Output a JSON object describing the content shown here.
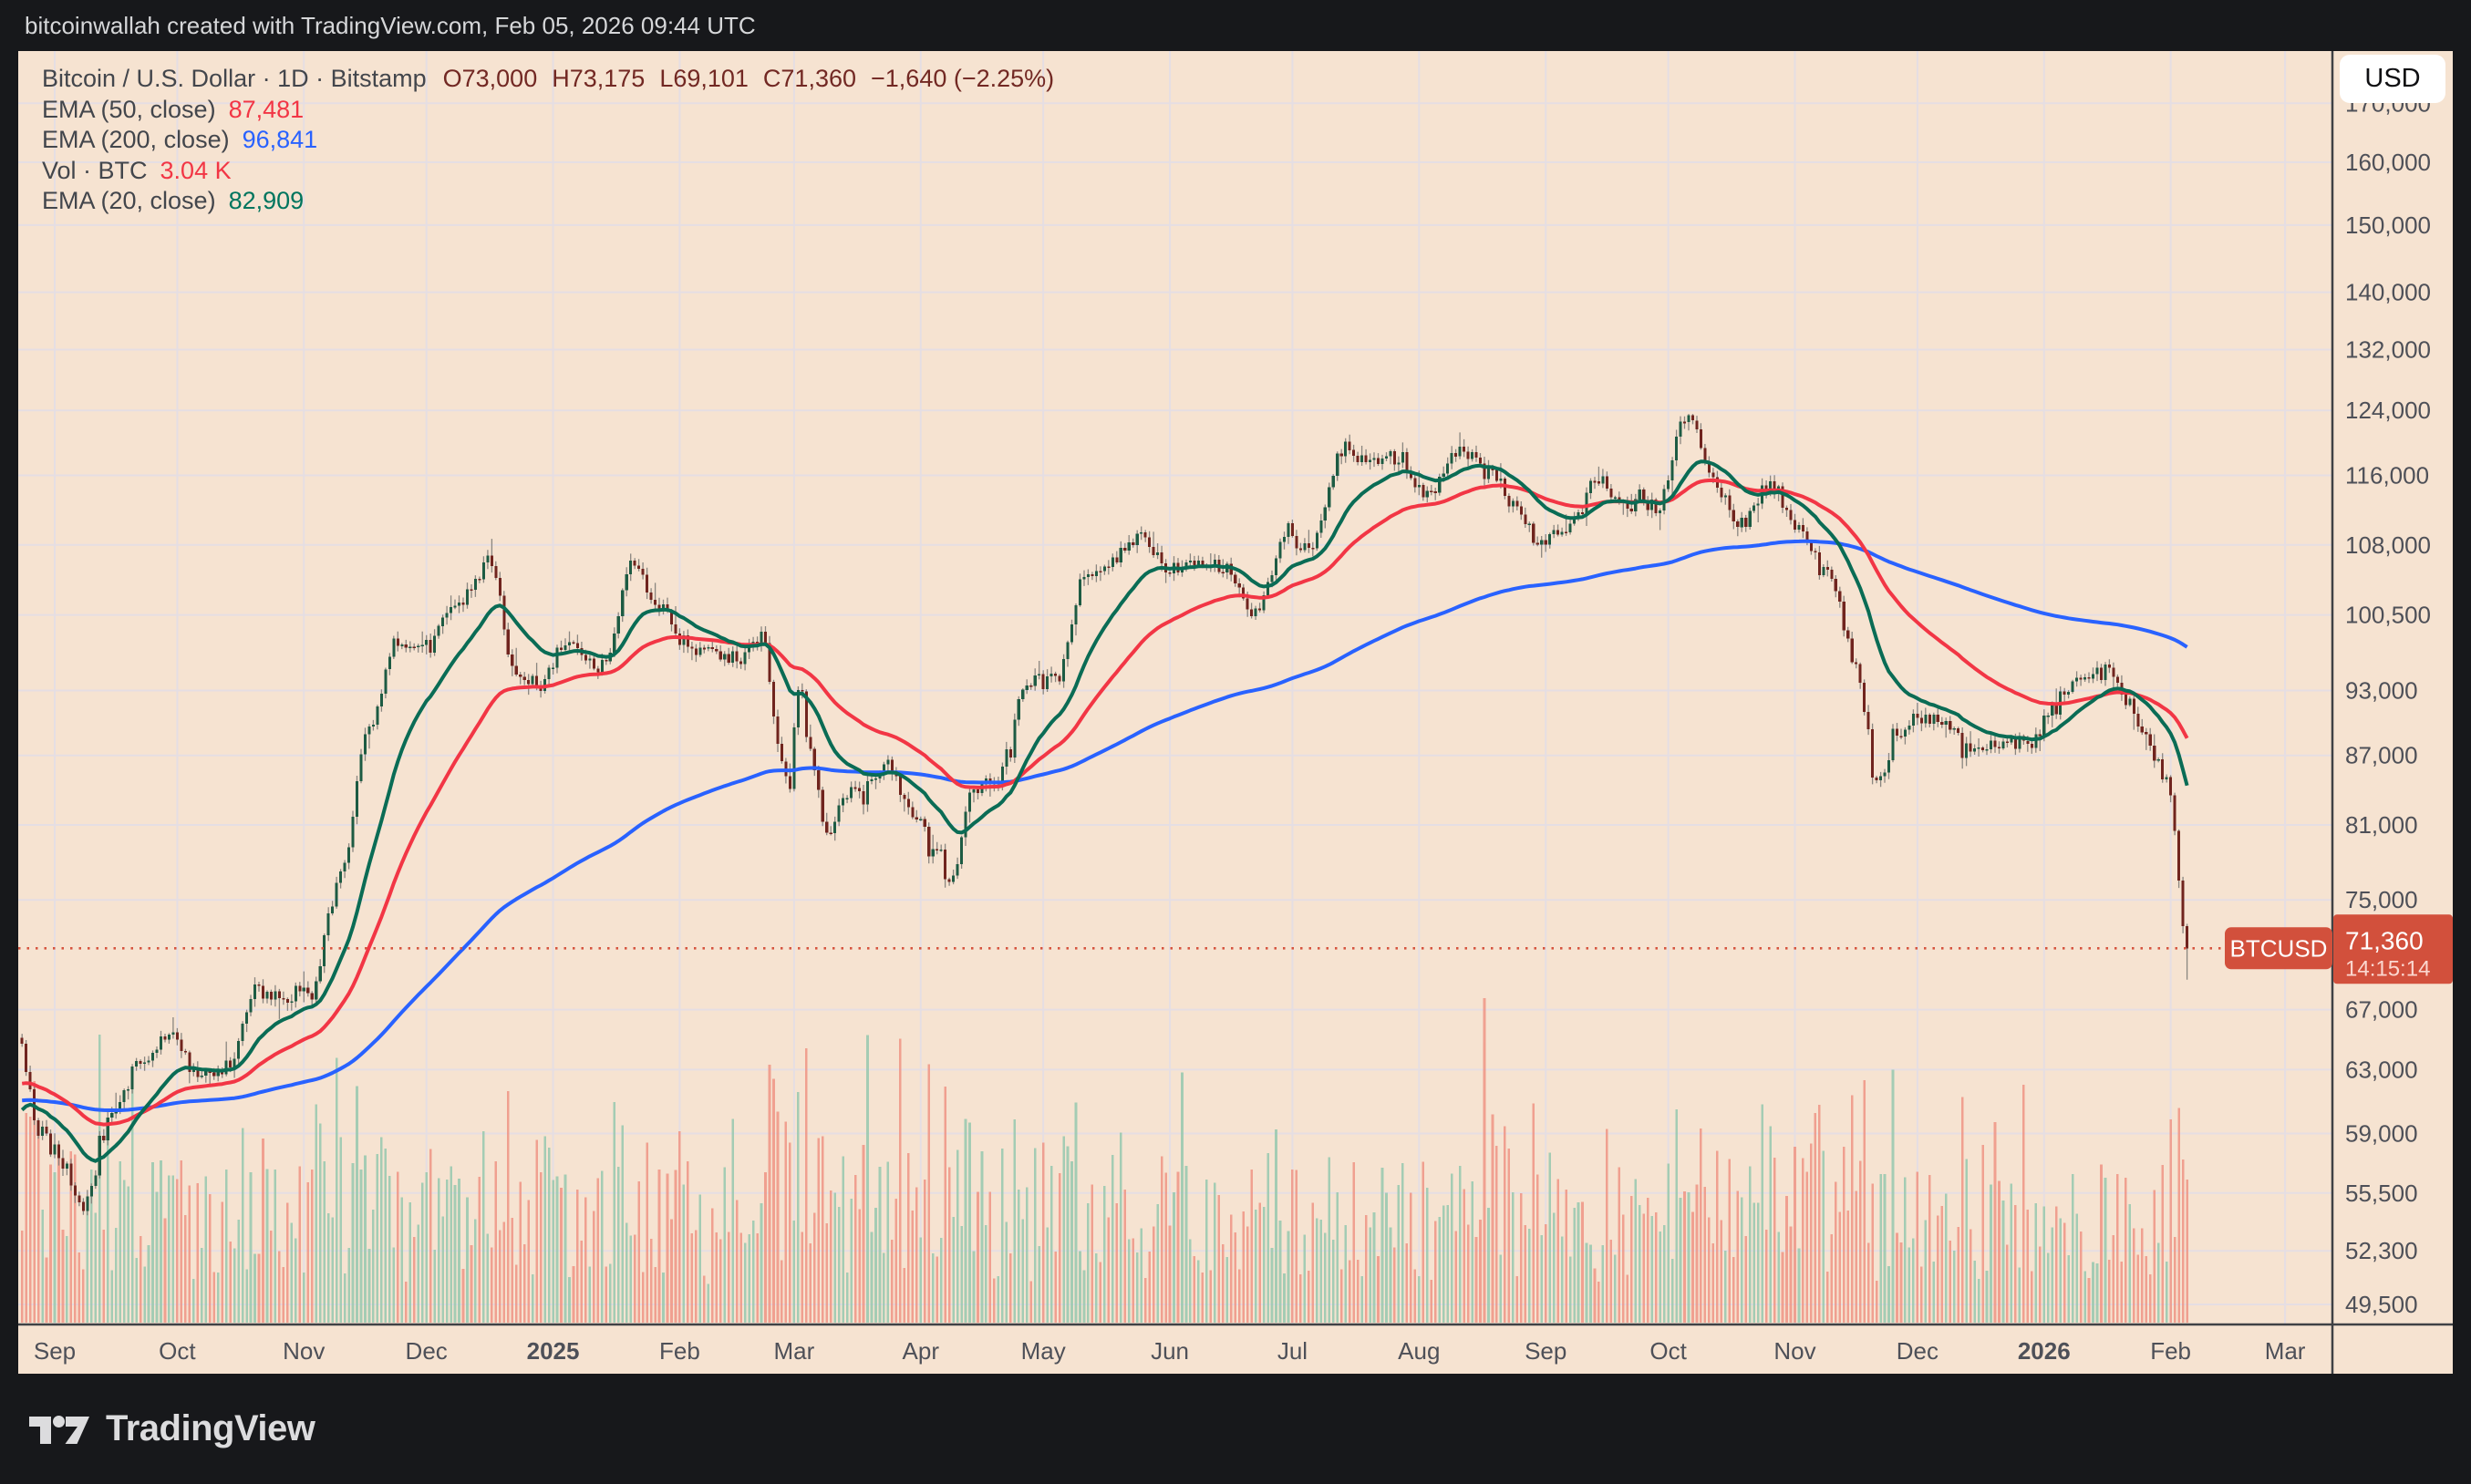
{
  "attribution": "bitcoinwallah created with TradingView.com, Feb 05, 2026 09:44 UTC",
  "symbol_header": {
    "title": "Bitcoin / U.S. Dollar · 1D · Bitstamp",
    "ohlc": {
      "open": "O73,000",
      "high": "H73,175",
      "low": "L69,101",
      "close": "C71,360",
      "change": "−1,640 (−2.25%)"
    }
  },
  "indicators": [
    {
      "label": "EMA (50, close)",
      "value": "87,481",
      "color": "#f23645"
    },
    {
      "label": "EMA (200, close)",
      "value": "96,841",
      "color": "#2962ff"
    },
    {
      "label": "Vol · BTC",
      "value": "3.04 K",
      "color": "#f23645"
    },
    {
      "label": "EMA (20, close)",
      "value": "82,909",
      "color": "#00755e"
    }
  ],
  "price_scale": {
    "currency_button": "USD",
    "last_price_label": {
      "symbol": "BTCUSD",
      "price": "71,360",
      "countdown": "14:15:14"
    }
  },
  "time_scale": {
    "labels": [
      {
        "text": "Sep",
        "date": "2024-09-01",
        "bold": false
      },
      {
        "text": "Oct",
        "date": "2024-10-01",
        "bold": false
      },
      {
        "text": "Nov",
        "date": "2024-11-01",
        "bold": false
      },
      {
        "text": "Dec",
        "date": "2024-12-01",
        "bold": false
      },
      {
        "text": "2025",
        "date": "2025-01-01",
        "bold": true
      },
      {
        "text": "Feb",
        "date": "2025-02-01",
        "bold": false
      },
      {
        "text": "Mar",
        "date": "2025-03-01",
        "bold": false
      },
      {
        "text": "Apr",
        "date": "2025-04-01",
        "bold": false
      },
      {
        "text": "May",
        "date": "2025-05-01",
        "bold": false
      },
      {
        "text": "Jun",
        "date": "2025-06-01",
        "bold": false
      },
      {
        "text": "Jul",
        "date": "2025-07-01",
        "bold": false
      },
      {
        "text": "Aug",
        "date": "2025-08-01",
        "bold": false
      },
      {
        "text": "Sep",
        "date": "2025-09-01",
        "bold": false
      },
      {
        "text": "Oct",
        "date": "2025-10-01",
        "bold": false
      },
      {
        "text": "Nov",
        "date": "2025-11-01",
        "bold": false
      },
      {
        "text": "Dec",
        "date": "2025-12-01",
        "bold": false
      },
      {
        "text": "2026",
        "date": "2026-01-01",
        "bold": true
      },
      {
        "text": "Feb",
        "date": "2026-02-01",
        "bold": false
      },
      {
        "text": "Mar",
        "date": "2026-03-01",
        "bold": false
      }
    ]
  },
  "footer": {
    "brand": "TradingView"
  },
  "chart_data": {
    "type": "candlestick",
    "symbol": "BTCUSD",
    "name": "Bitcoin / U.S. Dollar",
    "interval": "1D",
    "exchange": "Bitstamp",
    "y_scale": "log",
    "visible_range": {
      "from": "2024-09-01",
      "to": "2026-03-10"
    },
    "price_axis_ticks": [
      170000,
      160000,
      150000,
      140000,
      132000,
      124000,
      116000,
      108000,
      100500,
      93000,
      87000,
      81000,
      75000,
      67000,
      63000,
      59000,
      55500,
      52300,
      49500
    ],
    "current_price": 71360,
    "last_candle": {
      "date": "2026-02-05",
      "open": 73000,
      "high": 73175,
      "low": 69101,
      "close": 71360
    },
    "change": -1640,
    "change_pct": -2.25,
    "ema_last_values": {
      "ema20": 82909,
      "ema50": 87481,
      "ema200": 96841
    },
    "ema_seeds": {
      "ema20": 60000,
      "ema50": 62000,
      "ema200": 61000
    },
    "volume_last_label": "3.04 K",
    "close_anchor_points": [
      [
        "2024-08-24",
        64200
      ],
      [
        "2024-08-28",
        59100
      ],
      [
        "2024-09-01",
        58000
      ],
      [
        "2024-09-08",
        54900
      ],
      [
        "2024-09-15",
        60000
      ],
      [
        "2024-09-22",
        63600
      ],
      [
        "2024-09-29",
        65600
      ],
      [
        "2024-10-06",
        62800
      ],
      [
        "2024-10-13",
        63200
      ],
      [
        "2024-10-20",
        68400
      ],
      [
        "2024-10-27",
        68000
      ],
      [
        "2024-11-03",
        68700
      ],
      [
        "2024-11-10",
        76700
      ],
      [
        "2024-11-17",
        89900
      ],
      [
        "2024-11-24",
        98000
      ],
      [
        "2024-12-01",
        97300
      ],
      [
        "2024-12-08",
        101200
      ],
      [
        "2024-12-17",
        106100
      ],
      [
        "2024-12-22",
        95100
      ],
      [
        "2024-12-29",
        93700
      ],
      [
        "2025-01-05",
        98300
      ],
      [
        "2025-01-12",
        94600
      ],
      [
        "2025-01-21",
        106100
      ],
      [
        "2025-01-26",
        102100
      ],
      [
        "2025-02-02",
        97700
      ],
      [
        "2025-02-09",
        96500
      ],
      [
        "2025-02-16",
        96100
      ],
      [
        "2025-02-21",
        98300
      ],
      [
        "2025-02-26",
        87000
      ],
      [
        "2025-02-28",
        84700
      ],
      [
        "2025-03-02",
        94200
      ],
      [
        "2025-03-05",
        87000
      ],
      [
        "2025-03-09",
        80700
      ],
      [
        "2025-03-16",
        84000
      ],
      [
        "2025-03-23",
        86100
      ],
      [
        "2025-03-30",
        82300
      ],
      [
        "2025-04-06",
        78400
      ],
      [
        "2025-04-09",
        76300
      ],
      [
        "2025-04-13",
        83700
      ],
      [
        "2025-04-20",
        85200
      ],
      [
        "2025-04-27",
        93800
      ],
      [
        "2025-05-04",
        94000
      ],
      [
        "2025-05-11",
        104100
      ],
      [
        "2025-05-18",
        106400
      ],
      [
        "2025-05-25",
        109000
      ],
      [
        "2025-06-01",
        105600
      ],
      [
        "2025-06-08",
        105700
      ],
      [
        "2025-06-15",
        105500
      ],
      [
        "2025-06-22",
        100900
      ],
      [
        "2025-06-29",
        108300
      ],
      [
        "2025-07-06",
        108200
      ],
      [
        "2025-07-14",
        119500
      ],
      [
        "2025-07-20",
        117300
      ],
      [
        "2025-07-27",
        118200
      ],
      [
        "2025-08-03",
        113400
      ],
      [
        "2025-08-10",
        119000
      ],
      [
        "2025-08-17",
        117400
      ],
      [
        "2025-08-24",
        113000
      ],
      [
        "2025-08-31",
        108200
      ],
      [
        "2025-09-07",
        110300
      ],
      [
        "2025-09-14",
        115400
      ],
      [
        "2025-09-21",
        112300
      ],
      [
        "2025-09-28",
        112200
      ],
      [
        "2025-10-06",
        124000
      ],
      [
        "2025-10-12",
        115200
      ],
      [
        "2025-10-19",
        110600
      ],
      [
        "2025-10-26",
        114800
      ],
      [
        "2025-11-02",
        110100
      ],
      [
        "2025-11-09",
        104900
      ],
      [
        "2025-11-16",
        95600
      ],
      [
        "2025-11-21",
        84500
      ],
      [
        "2025-11-26",
        88500
      ],
      [
        "2025-11-30",
        90800
      ],
      [
        "2025-12-07",
        90000
      ],
      [
        "2025-12-14",
        87500
      ],
      [
        "2025-12-21",
        87800
      ],
      [
        "2025-12-28",
        88200
      ],
      [
        "2026-01-04",
        91500
      ],
      [
        "2026-01-11",
        94200
      ],
      [
        "2026-01-17",
        94800
      ],
      [
        "2026-01-22",
        91500
      ],
      [
        "2026-01-26",
        88500
      ],
      [
        "2026-01-30",
        85500
      ],
      [
        "2026-02-01",
        83500
      ],
      [
        "2026-02-02",
        80500
      ],
      [
        "2026-02-03",
        76500
      ],
      [
        "2026-02-04",
        73000
      ],
      [
        "2026-02-05",
        71360
      ]
    ],
    "colors": {
      "background": "#f6e3d1",
      "grid": "#e5dee3",
      "candle_up": "#1d5b43",
      "candle_down": "#70241e",
      "wick": "#8a8680",
      "volume_up": "#9ccab1",
      "volume_down": "#f0998a",
      "ema20": "#0a6c55",
      "ema50": "#f23645",
      "ema200": "#2962ff",
      "price_line": "#d6543f",
      "price_badge": "#d2503c",
      "axis_text": "#4e5058",
      "axis_line": "#3f4145",
      "legend_text": "#43464c",
      "ohlc_down_text": "#722823",
      "frame": "#17181b"
    }
  }
}
